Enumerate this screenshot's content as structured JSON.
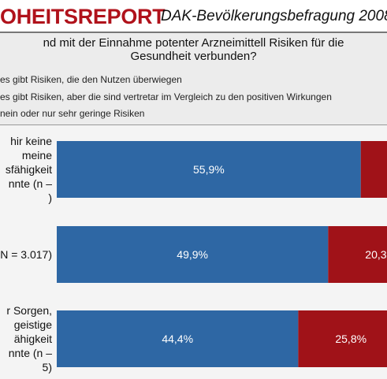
{
  "header": {
    "title": "OHEITSREPORT",
    "subtitle": "DAK-Bevölkerungsbefragung 2008"
  },
  "question": {
    "line1": "nd mit der Einnahme potenter Arzneimittell Risiken für die",
    "line2": "Gesundheit verbunden?"
  },
  "colors": {
    "title_red": "#b0121b",
    "bar_blue": "#2e67a4",
    "bar_red": "#a01218"
  },
  "chart_data": {
    "type": "bar",
    "orientation": "horizontal",
    "stacked": true,
    "legend": [
      "es gibt Risiken, die den Nutzen überwiegen",
      "es gibt Risiken, aber die sind vertretar im Vergleich zu den positiven Wirkungen",
      "nein oder nur sehr geringe Risiken"
    ],
    "categories": [
      [
        "hir keine",
        "meine",
        "sfähigkeit",
        "nnte  (n –",
        ")"
      ],
      [
        "N = 3.017)"
      ],
      [
        "r Sorgen,",
        "geistige",
        "ähigkeit",
        "nnte  (n –",
        "5)"
      ]
    ],
    "series": [
      {
        "values": [
          55.9,
          49.9,
          44.4
        ],
        "labels": [
          "55,9%",
          "49,9%",
          "44,4%"
        ],
        "color": "#2e67a4"
      },
      {
        "values": [
          null,
          20.3,
          25.8
        ],
        "labels": [
          "",
          "20,3",
          "25,8%"
        ],
        "color": "#a01218"
      }
    ]
  }
}
